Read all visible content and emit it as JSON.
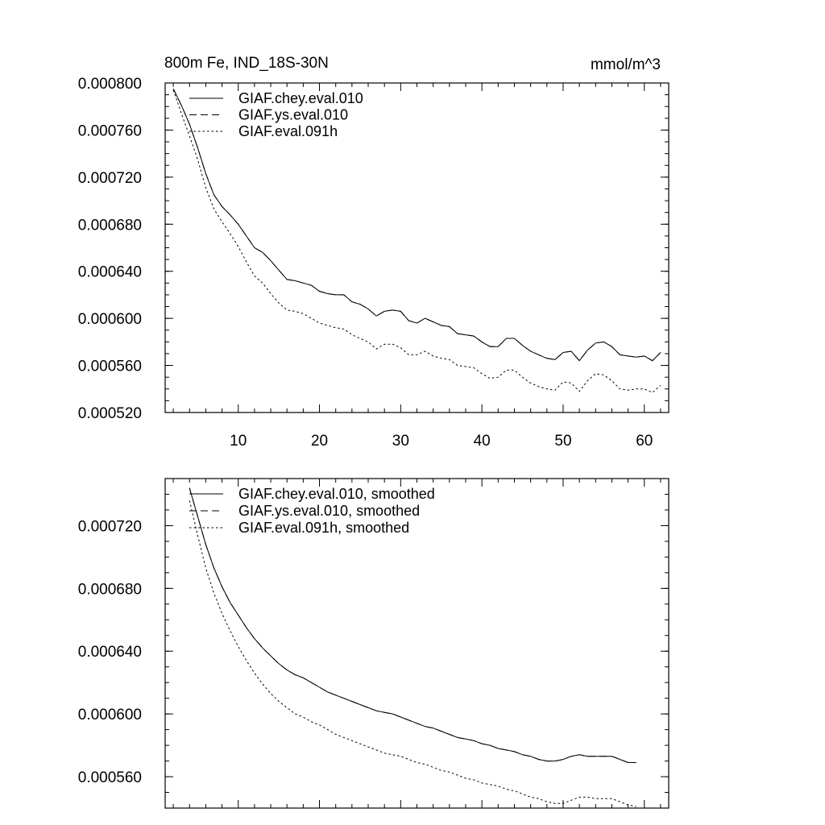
{
  "chart_data": [
    {
      "type": "line",
      "title_left": "800m Fe, IND_18S-30N",
      "title_right": "mmol/m^3",
      "xlabel": "",
      "ylabel": "",
      "xlim": [
        1,
        63
      ],
      "ylim": [
        0.00052,
        0.0008
      ],
      "x_ticks": [
        10,
        20,
        30,
        40,
        50,
        60
      ],
      "x_tick_labels": [
        "10",
        "20",
        "30",
        "40",
        "50",
        "60"
      ],
      "y_ticks": [
        0.00052,
        0.00056,
        0.0006,
        0.00064,
        0.00068,
        0.00072,
        0.00076,
        0.0008
      ],
      "y_tick_labels": [
        "0.000520",
        "0.000560",
        "0.000600",
        "0.000640",
        "0.000680",
        "0.000720",
        "0.000760",
        "0.000800"
      ],
      "grid": false,
      "legend_position": "top-left",
      "series": [
        {
          "name": "GIAF.chey.eval.010",
          "style": "solid",
          "x": [
            2,
            3,
            4,
            5,
            6,
            7,
            8,
            9,
            10,
            11,
            12,
            13,
            14,
            15,
            16,
            17,
            18,
            19,
            20,
            21,
            22,
            23,
            24,
            25,
            26,
            27,
            28,
            29,
            30,
            31,
            32,
            33,
            34,
            35,
            36,
            37,
            38,
            39,
            40,
            41,
            42,
            43,
            44,
            45,
            46,
            47,
            48,
            49,
            50,
            51,
            52,
            53,
            54,
            55,
            56,
            57,
            58,
            59,
            60,
            61,
            62
          ],
          "values": [
            0.000795,
            0.000781,
            0.000765,
            0.000745,
            0.000723,
            0.000705,
            0.000695,
            0.000688,
            0.00068,
            0.00067,
            0.00066,
            0.000656,
            0.000649,
            0.000641,
            0.000633,
            0.000632,
            0.00063,
            0.000628,
            0.000623,
            0.000621,
            0.00062,
            0.00062,
            0.000614,
            0.000612,
            0.000608,
            0.000602,
            0.000606,
            0.000607,
            0.000606,
            0.000598,
            0.000596,
            0.0006,
            0.000597,
            0.000594,
            0.000593,
            0.000587,
            0.000586,
            0.000585,
            0.00058,
            0.000576,
            0.000576,
            0.000583,
            0.000583,
            0.000577,
            0.000572,
            0.000569,
            0.000566,
            0.000565,
            0.000571,
            0.000572,
            0.000564,
            0.000573,
            0.000579,
            0.00058,
            0.000576,
            0.000569,
            0.000568,
            0.000567,
            0.000568,
            0.000564,
            0.000571
          ]
        },
        {
          "name": "GIAF.ys.eval.010",
          "style": "dashed",
          "x": [
            2,
            3,
            4,
            5,
            6,
            7,
            8,
            9,
            10,
            11,
            12,
            13,
            14,
            15,
            16,
            17,
            18,
            19,
            20,
            21,
            22,
            23,
            24,
            25,
            26,
            27,
            28,
            29,
            30,
            31,
            32,
            33,
            34,
            35,
            36,
            37,
            38,
            39,
            40,
            41,
            42,
            43,
            44,
            45,
            46,
            47,
            48,
            49,
            50,
            51,
            52,
            53,
            54,
            55,
            56,
            57,
            58,
            59,
            60,
            61,
            62
          ],
          "values": [
            0.000795,
            0.000781,
            0.000765,
            0.000745,
            0.000723,
            0.000705,
            0.000695,
            0.000688,
            0.00068,
            0.00067,
            0.00066,
            0.000656,
            0.000649,
            0.000641,
            0.000633,
            0.000632,
            0.00063,
            0.000628,
            0.000623,
            0.000621,
            0.00062,
            0.00062,
            0.000614,
            0.000612,
            0.000608,
            0.000602,
            0.000606,
            0.000607,
            0.000606,
            0.000598,
            0.000596,
            0.0006,
            0.000597,
            0.000594,
            0.000593,
            0.000587,
            0.000586,
            0.000585,
            0.00058,
            0.000576,
            0.000576,
            0.000583,
            0.000583,
            0.000577,
            0.000572,
            0.000569,
            0.000566,
            0.000565,
            0.000571,
            0.000572,
            0.000564,
            0.000573,
            0.000579,
            0.00058,
            0.000576,
            0.000569,
            0.000568,
            0.000567,
            0.000568,
            0.000564,
            0.000571
          ]
        },
        {
          "name": "GIAF.eval.091h",
          "style": "dotted",
          "x": [
            2,
            3,
            4,
            5,
            6,
            7,
            8,
            9,
            10,
            11,
            12,
            13,
            14,
            15,
            16,
            17,
            18,
            19,
            20,
            21,
            22,
            23,
            24,
            25,
            26,
            27,
            28,
            29,
            30,
            31,
            32,
            33,
            34,
            35,
            36,
            37,
            38,
            39,
            40,
            41,
            42,
            43,
            44,
            45,
            46,
            47,
            48,
            49,
            50,
            51,
            52,
            53,
            54,
            55,
            56,
            57,
            58,
            59,
            60,
            61,
            62
          ],
          "values": [
            0.000794,
            0.000774,
            0.000755,
            0.000735,
            0.000711,
            0.000693,
            0.000682,
            0.000672,
            0.000661,
            0.000648,
            0.000636,
            0.00063,
            0.000621,
            0.000613,
            0.000607,
            0.000606,
            0.000604,
            0.0006,
            0.000596,
            0.000594,
            0.000592,
            0.000591,
            0.000586,
            0.000583,
            0.00058,
            0.000574,
            0.000578,
            0.000578,
            0.000575,
            0.000569,
            0.000569,
            0.000572,
            0.000568,
            0.000566,
            0.000565,
            0.00056,
            0.000559,
            0.000558,
            0.000553,
            0.000549,
            0.00055,
            0.000556,
            0.000556,
            0.00055,
            0.000545,
            0.000542,
            0.00054,
            0.000539,
            0.000546,
            0.000545,
            0.000538,
            0.000547,
            0.000553,
            0.000552,
            0.000547,
            0.00054,
            0.000539,
            0.00054,
            0.00054,
            0.000537,
            0.000543
          ]
        }
      ]
    },
    {
      "type": "line",
      "title_left": "",
      "title_right": "",
      "xlabel": "",
      "ylabel": "",
      "xlim": [
        1,
        63
      ],
      "ylim": [
        0.00054,
        0.00075
      ],
      "x_ticks": [
        10,
        20,
        30,
        40,
        50,
        60
      ],
      "x_tick_labels": [],
      "y_ticks": [
        0.00056,
        0.0006,
        0.00064,
        0.00068,
        0.00072
      ],
      "y_tick_labels": [
        "0.000560",
        "0.000600",
        "0.000640",
        "0.000680",
        "0.000720"
      ],
      "grid": false,
      "legend_position": "top-left",
      "series": [
        {
          "name": "GIAF.chey.eval.010, smoothed",
          "style": "solid",
          "x": [
            4,
            5,
            6,
            7,
            8,
            9,
            10,
            11,
            12,
            13,
            14,
            15,
            16,
            17,
            18,
            19,
            20,
            21,
            22,
            23,
            24,
            25,
            26,
            27,
            28,
            29,
            30,
            31,
            32,
            33,
            34,
            35,
            36,
            37,
            38,
            39,
            40,
            41,
            42,
            43,
            44,
            45,
            46,
            47,
            48,
            49,
            50,
            51,
            52,
            53,
            54,
            55,
            56,
            57,
            58,
            59
          ],
          "values": [
            0.000744,
            0.000726,
            0.000708,
            0.000693,
            0.000681,
            0.000671,
            0.000663,
            0.000655,
            0.000648,
            0.000642,
            0.000637,
            0.000632,
            0.000628,
            0.000625,
            0.000623,
            0.00062,
            0.000617,
            0.000614,
            0.000612,
            0.00061,
            0.000608,
            0.000606,
            0.000604,
            0.000602,
            0.000601,
            0.0006,
            0.000598,
            0.000596,
            0.000594,
            0.000592,
            0.000591,
            0.000589,
            0.000587,
            0.000585,
            0.000584,
            0.000583,
            0.000581,
            0.00058,
            0.000578,
            0.000577,
            0.000576,
            0.000574,
            0.000573,
            0.000571,
            0.00057,
            0.00057,
            0.000571,
            0.000573,
            0.000574,
            0.000573,
            0.000573,
            0.000573,
            0.000573,
            0.000571,
            0.000569,
            0.000569
          ]
        },
        {
          "name": "GIAF.ys.eval.010, smoothed",
          "style": "dashed",
          "x": [
            4,
            5,
            6,
            7,
            8,
            9,
            10,
            11,
            12,
            13,
            14,
            15,
            16,
            17,
            18,
            19,
            20,
            21,
            22,
            23,
            24,
            25,
            26,
            27,
            28,
            29,
            30,
            31,
            32,
            33,
            34,
            35,
            36,
            37,
            38,
            39,
            40,
            41,
            42,
            43,
            44,
            45,
            46,
            47,
            48,
            49,
            50,
            51,
            52,
            53,
            54,
            55,
            56,
            57,
            58,
            59
          ],
          "values": [
            0.000744,
            0.000726,
            0.000708,
            0.000693,
            0.000681,
            0.000671,
            0.000663,
            0.000655,
            0.000648,
            0.000642,
            0.000637,
            0.000632,
            0.000628,
            0.000625,
            0.000623,
            0.00062,
            0.000617,
            0.000614,
            0.000612,
            0.00061,
            0.000608,
            0.000606,
            0.000604,
            0.000602,
            0.000601,
            0.0006,
            0.000598,
            0.000596,
            0.000594,
            0.000592,
            0.000591,
            0.000589,
            0.000587,
            0.000585,
            0.000584,
            0.000583,
            0.000581,
            0.00058,
            0.000578,
            0.000577,
            0.000576,
            0.000574,
            0.000573,
            0.000571,
            0.00057,
            0.00057,
            0.000571,
            0.000573,
            0.000574,
            0.000573,
            0.000573,
            0.000573,
            0.000573,
            0.000571,
            0.000569,
            0.000569
          ]
        },
        {
          "name": "GIAF.eval.091h, smoothed",
          "style": "dotted",
          "x": [
            4,
            5,
            6,
            7,
            8,
            9,
            10,
            11,
            12,
            13,
            14,
            15,
            16,
            17,
            18,
            19,
            20,
            21,
            22,
            23,
            24,
            25,
            26,
            27,
            28,
            29,
            30,
            31,
            32,
            33,
            34,
            35,
            36,
            37,
            38,
            39,
            40,
            41,
            42,
            43,
            44,
            45,
            46,
            47,
            48,
            49,
            50,
            51,
            52,
            53,
            54,
            55,
            56,
            57,
            58,
            59
          ],
          "values": [
            0.000736,
            0.000714,
            0.000693,
            0.000677,
            0.000664,
            0.000653,
            0.000643,
            0.000634,
            0.000626,
            0.000619,
            0.000613,
            0.000608,
            0.000604,
            0.0006,
            0.000598,
            0.000595,
            0.000593,
            0.00059,
            0.000587,
            0.000585,
            0.000583,
            0.000581,
            0.000579,
            0.000577,
            0.000575,
            0.000574,
            0.000573,
            0.000571,
            0.000569,
            0.000568,
            0.000566,
            0.000564,
            0.000563,
            0.000561,
            0.000559,
            0.000558,
            0.000556,
            0.000555,
            0.000554,
            0.000552,
            0.000551,
            0.000549,
            0.000547,
            0.000546,
            0.000544,
            0.000543,
            0.000543,
            0.000545,
            0.000547,
            0.000547,
            0.000546,
            0.000546,
            0.000546,
            0.000544,
            0.000542,
            0.000541
          ]
        }
      ]
    }
  ]
}
